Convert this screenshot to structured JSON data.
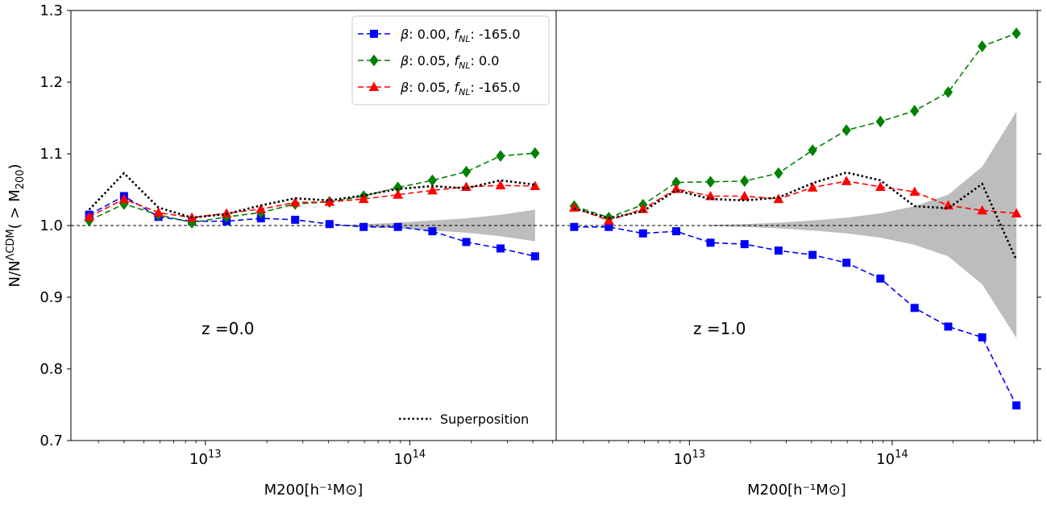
{
  "y_axis_label": {
    "base": "N/N",
    "sup": "ΛCDM",
    "tail": "( > M",
    "sub": "200",
    "close": ")"
  },
  "chart_data": [
    {
      "type": "line",
      "panel": "left",
      "annotation": "z =0.0",
      "xlabel": "M200[h⁻¹M⊙]",
      "xscale": "log",
      "xlim": [
        2200000000000.0,
        520000000000000.0
      ],
      "ylim": [
        0.7,
        1.3
      ],
      "yticks": [
        0.7,
        0.8,
        0.9,
        1.0,
        1.1,
        1.2,
        1.3
      ],
      "ytick_labels": [
        "0.7",
        "0.8",
        "0.9",
        "1.0",
        "1.1",
        "1.2",
        "1.3"
      ],
      "xticks": [
        10000000000000.0,
        100000000000000.0
      ],
      "reference_line": 1.0,
      "legend": {
        "placement": "top-right",
        "entries": [
          {
            "series": 0,
            "beta_text": "β",
            "beta_value": ": 0.00, ",
            "f_text": "f",
            "f_sub": "NL",
            "f_value": ": -165.0"
          },
          {
            "series": 1,
            "beta_text": "β",
            "beta_value": ": 0.05, ",
            "f_text": "f",
            "f_sub": "NL",
            "f_value": ": 0.0"
          },
          {
            "series": 2,
            "beta_text": "β",
            "beta_value": ": 0.05, ",
            "f_text": "f",
            "f_sub": "NL",
            "f_value": ": -165.0"
          }
        ],
        "superposition_label": "Superposition",
        "superposition_placement": "bottom-right"
      },
      "x": [
        2700000000000.0,
        4000000000000.0,
        5900000000000.0,
        8600000000000.0,
        12700000000000.0,
        18700000000000.0,
        27500000000000.0,
        40500000000000.0,
        59500000000000.0,
        87500000000000.0,
        129000000000000.0,
        189000000000000.0,
        278000000000000.0,
        410000000000000.0
      ],
      "series": [
        {
          "name": "β: 0.00, f_NL: -165.0",
          "color": "#0000ff",
          "marker": "square",
          "linestyle": "dashed",
          "values": [
            1.015,
            1.041,
            1.012,
            1.006,
            1.006,
            1.01,
            1.008,
            1.002,
            0.998,
            0.998,
            0.992,
            0.977,
            0.968,
            0.957
          ]
        },
        {
          "name": "β: 0.05, f_NL: 0.0",
          "color": "#008000",
          "marker": "diamond",
          "linestyle": "dashed",
          "values": [
            1.007,
            1.03,
            1.015,
            1.004,
            1.012,
            1.018,
            1.03,
            1.033,
            1.041,
            1.053,
            1.063,
            1.075,
            1.097,
            1.101
          ]
        },
        {
          "name": "β: 0.05, f_NL: -165.0",
          "color": "#ff0000",
          "marker": "triangle",
          "linestyle": "dashed",
          "values": [
            1.012,
            1.037,
            1.018,
            1.011,
            1.017,
            1.023,
            1.032,
            1.033,
            1.037,
            1.043,
            1.049,
            1.054,
            1.056,
            1.055
          ]
        },
        {
          "name": "Superposition",
          "color": "#000000",
          "marker": "none",
          "linestyle": "dotted",
          "values": [
            1.022,
            1.073,
            1.025,
            1.011,
            1.016,
            1.028,
            1.038,
            1.035,
            1.042,
            1.051,
            1.055,
            1.052,
            1.063,
            1.057
          ]
        }
      ],
      "band": {
        "color": "#bdbdbd",
        "x": [
          40500000000000.0,
          59500000000000.0,
          87500000000000.0,
          129000000000000.0,
          189000000000000.0,
          278000000000000.0,
          410000000000000.0
        ],
        "upper": [
          1.0,
          1.002,
          1.004,
          1.007,
          1.01,
          1.015,
          1.022
        ],
        "lower": [
          1.0,
          0.998,
          0.996,
          0.993,
          0.99,
          0.985,
          0.978
        ]
      }
    },
    {
      "type": "line",
      "panel": "right",
      "annotation": "z =1.0",
      "xlabel": "M200[h⁻¹M⊙]",
      "xscale": "log",
      "xlim": [
        2200000000000.0,
        520000000000000.0
      ],
      "ylim": [
        0.7,
        1.3
      ],
      "xticks": [
        10000000000000.0,
        100000000000000.0
      ],
      "reference_line": 1.0,
      "x": [
        2700000000000.0,
        4000000000000.0,
        5900000000000.0,
        8600000000000.0,
        12700000000000.0,
        18700000000000.0,
        27500000000000.0,
        40500000000000.0,
        59500000000000.0,
        87500000000000.0,
        129000000000000.0,
        189000000000000.0,
        278000000000000.0,
        410000000000000.0
      ],
      "series": [
        {
          "name": "β: 0.00, f_NL: -165.0",
          "color": "#0000ff",
          "marker": "square",
          "linestyle": "dashed",
          "values": [
            0.998,
            0.998,
            0.989,
            0.992,
            0.976,
            0.974,
            0.965,
            0.959,
            0.948,
            0.926,
            0.885,
            0.859,
            0.844,
            0.749
          ]
        },
        {
          "name": "β: 0.05, f_NL: 0.0",
          "color": "#008000",
          "marker": "diamond",
          "linestyle": "dashed",
          "values": [
            1.027,
            1.011,
            1.029,
            1.06,
            1.061,
            1.062,
            1.073,
            1.105,
            1.133,
            1.145,
            1.16,
            1.186,
            1.25,
            1.268
          ]
        },
        {
          "name": "β: 0.05, f_NL: -165.0",
          "color": "#ff0000",
          "marker": "triangle",
          "linestyle": "dashed",
          "values": [
            1.025,
            1.007,
            1.023,
            1.051,
            1.041,
            1.041,
            1.037,
            1.053,
            1.062,
            1.054,
            1.047,
            1.028,
            1.021,
            1.017
          ]
        },
        {
          "name": "Superposition",
          "color": "#000000",
          "marker": "none",
          "linestyle": "dotted",
          "values": [
            1.024,
            1.01,
            1.02,
            1.049,
            1.037,
            1.035,
            1.039,
            1.059,
            1.074,
            1.063,
            1.027,
            1.024,
            1.058,
            0.952
          ]
        }
      ],
      "band": {
        "color": "#bdbdbd",
        "x": [
          12700000000000.0,
          18700000000000.0,
          27500000000000.0,
          40500000000000.0,
          59500000000000.0,
          87500000000000.0,
          129000000000000.0,
          189000000000000.0,
          278000000000000.0,
          410000000000000.0
        ],
        "upper": [
          1.001,
          1.002,
          1.004,
          1.007,
          1.011,
          1.017,
          1.027,
          1.043,
          1.082,
          1.159
        ],
        "lower": [
          0.999,
          0.998,
          0.996,
          0.993,
          0.989,
          0.983,
          0.973,
          0.957,
          0.918,
          0.843
        ]
      }
    }
  ]
}
